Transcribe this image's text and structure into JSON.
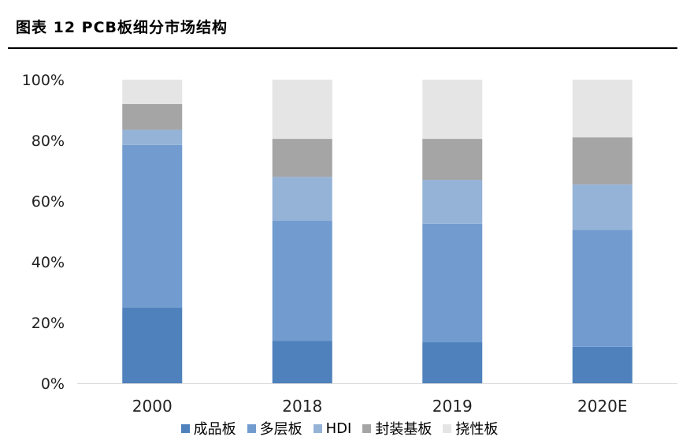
{
  "figure": {
    "title": "图表 12 PCB板细分市场结构"
  },
  "chart_data": {
    "type": "bar",
    "stacked": true,
    "categories": [
      "2000",
      "2018",
      "2019",
      "2020E"
    ],
    "ylim": [
      0,
      100
    ],
    "yticks": [
      0,
      20,
      40,
      60,
      80,
      100
    ],
    "ytick_labels": [
      "0%",
      "20%",
      "40%",
      "60%",
      "80%",
      "100%"
    ],
    "grid": false,
    "legend_position": "bottom",
    "series": [
      {
        "name": "成品板",
        "color": "#4f81bd",
        "values": [
          25,
          14,
          13.5,
          12
        ]
      },
      {
        "name": "多层板",
        "color": "#729ccf",
        "values": [
          53.5,
          39.5,
          39,
          38.5
        ]
      },
      {
        "name": "HDI",
        "color": "#95b3d7",
        "values": [
          5,
          14.5,
          14.5,
          15
        ]
      },
      {
        "name": "封装基板",
        "color": "#a5a5a5",
        "values": [
          8.5,
          12.5,
          13.5,
          15.5
        ]
      },
      {
        "name": "挠性板",
        "color": "#e5e5e5",
        "values": [
          8,
          19.5,
          19.5,
          19
        ]
      }
    ]
  }
}
